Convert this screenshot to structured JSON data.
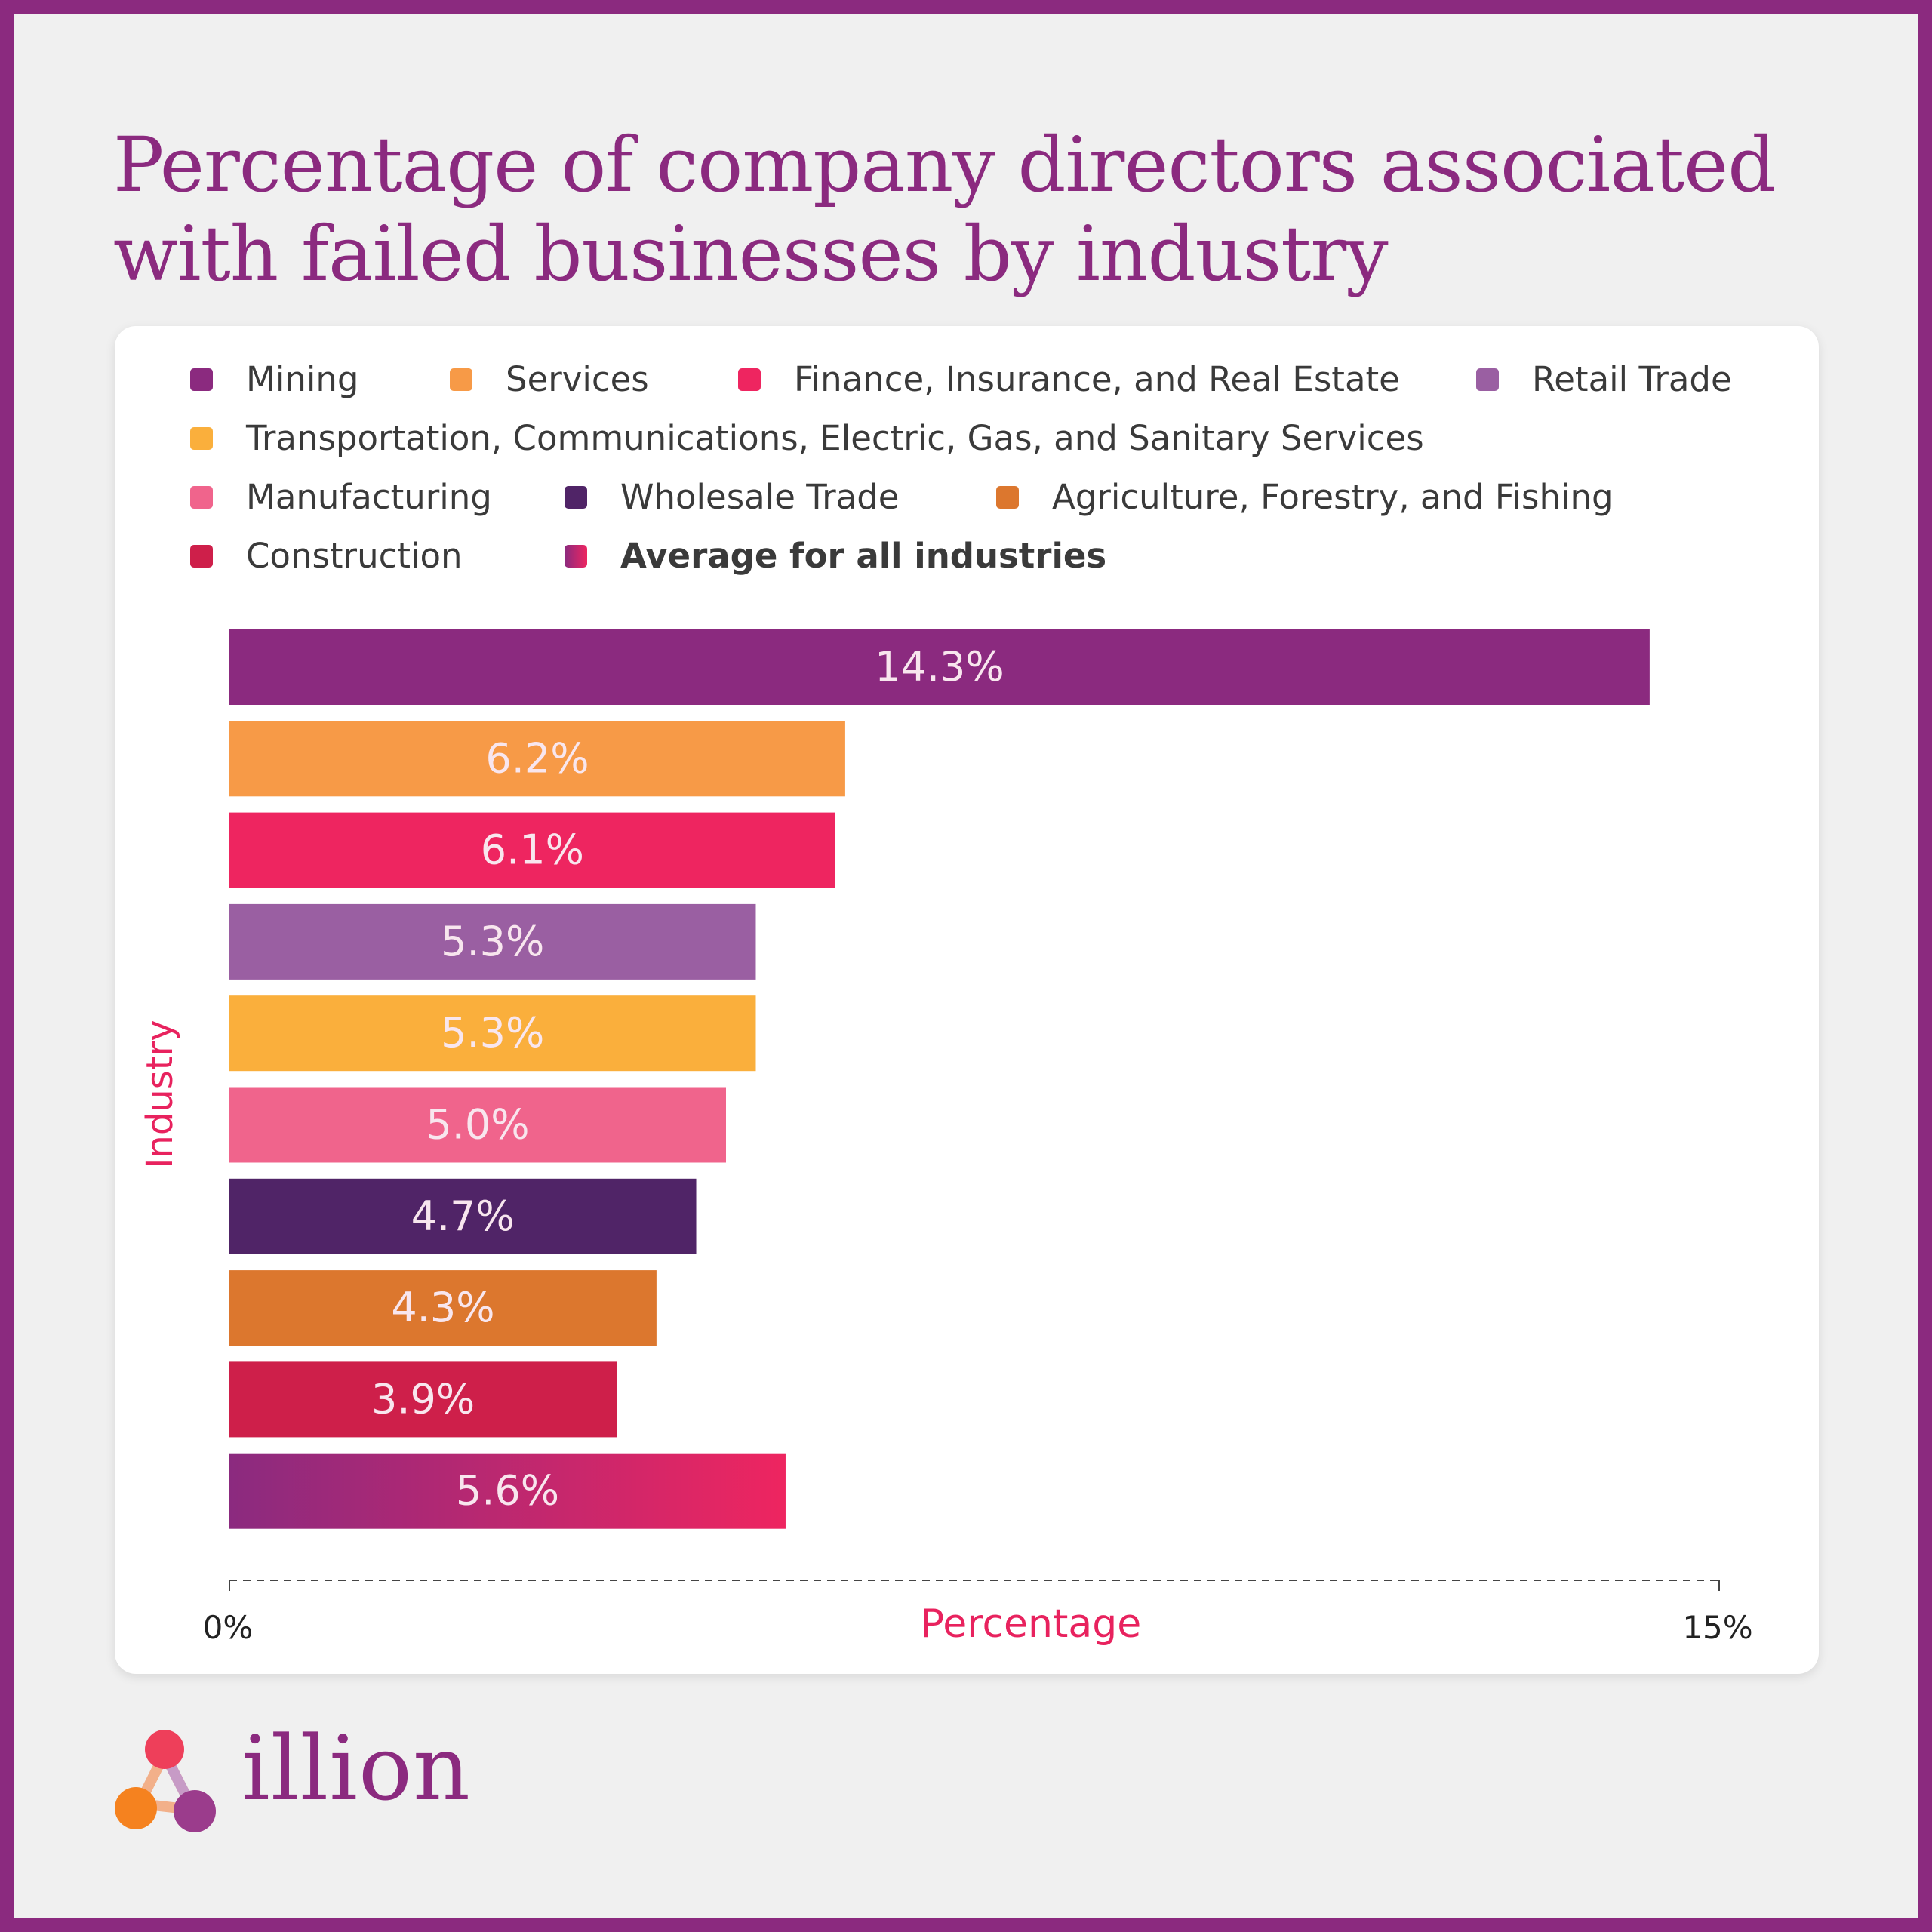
{
  "title": "Percentage of company directors associated with failed businesses by industry",
  "brand": {
    "name": "illion",
    "primary": "#8B2A7F",
    "accent": "#E8225E"
  },
  "chart_data": {
    "type": "bar",
    "orientation": "horizontal",
    "xlabel": "Percentage",
    "ylabel": "Industry",
    "xlim": [
      0,
      15
    ],
    "x_ticks": [
      "0%",
      "15%"
    ],
    "categories": [
      "Mining",
      "Services",
      "Finance, Insurance, and Real Estate",
      "Retail Trade",
      "Transportation, Communications, Electric, Gas, and Sanitary Services",
      "Manufacturing",
      "Wholesale Trade",
      "Agriculture, Forestry, and Fishing",
      "Construction",
      "Average for all industries"
    ],
    "values": [
      14.3,
      6.2,
      6.1,
      5.3,
      5.3,
      5.0,
      4.7,
      4.3,
      3.9,
      5.6
    ],
    "data_labels": [
      "14.3%",
      "6.2%",
      "6.1%",
      "5.3%",
      "5.3%",
      "5.0%",
      "4.7%",
      "4.3%",
      "3.9%",
      "5.6%"
    ],
    "colors": [
      "#8B2A7F",
      "#F79A47",
      "#EE2560",
      "#9A5FA2",
      "#FAAF3C",
      "#F0648C",
      "#502467",
      "#DC772E",
      "#CE1F4A",
      "gradient:#8B2A7F-#EE2560"
    ],
    "legend_position": "top",
    "grid": false
  }
}
